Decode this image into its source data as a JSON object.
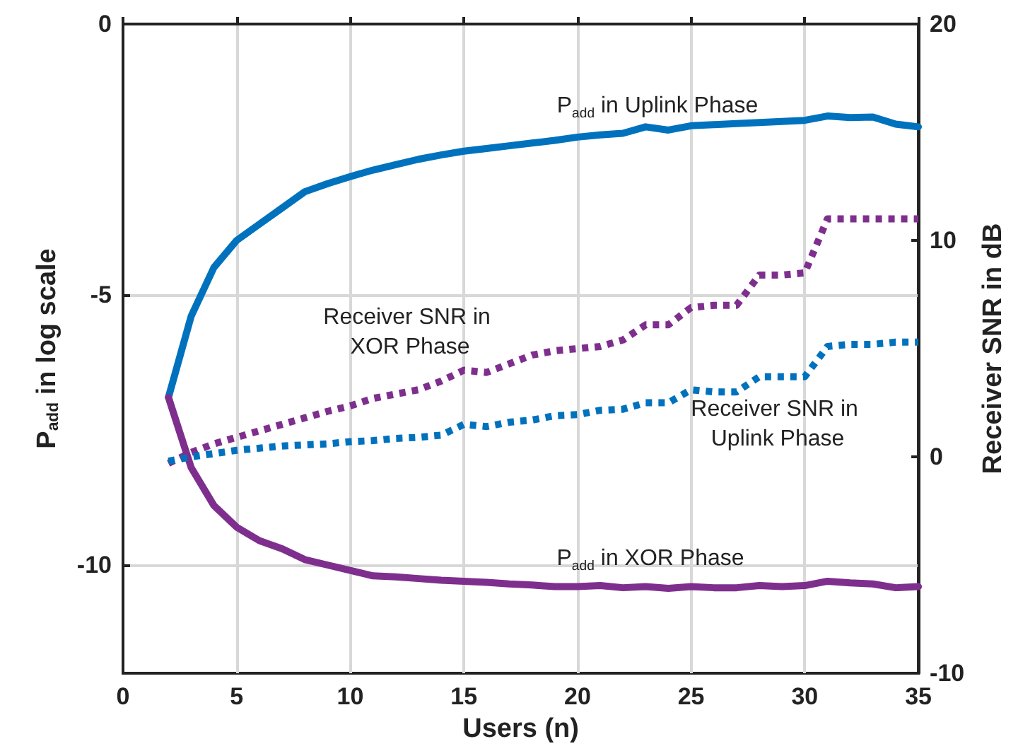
{
  "chart_data": {
    "type": "line",
    "xlabel": "Users (n)",
    "ylabel": "P$_{add}$ in log scale",
    "y2label": "Receiver SNR in dB",
    "xlim": [
      0,
      35
    ],
    "xticks": [
      0,
      5,
      10,
      15,
      20,
      25,
      30,
      35
    ],
    "ylim": [
      -12,
      0
    ],
    "yticks": [
      -10,
      -5,
      0
    ],
    "y2lim": [
      -10,
      20
    ],
    "y2ticks": [
      -10,
      0,
      10,
      20
    ],
    "grid": true,
    "marker": "none",
    "x": [
      2,
      3,
      4,
      5,
      6,
      7,
      8,
      9,
      10,
      11,
      12,
      13,
      14,
      15,
      16,
      17,
      18,
      19,
      20,
      21,
      22,
      23,
      24,
      25,
      26,
      27,
      28,
      29,
      30,
      31,
      32,
      33,
      34,
      35
    ],
    "series": [
      {
        "name": "P$_{add}$ in Uplink Phase",
        "color": "#0072bd",
        "line_style": "solid",
        "values": [
          -6.9,
          -5.4,
          -4.5,
          -4.0,
          -3.7,
          -3.4,
          -3.1,
          -2.95,
          -2.82,
          -2.7,
          -2.6,
          -2.5,
          -2.42,
          -2.35,
          -2.3,
          -2.25,
          -2.2,
          -2.15,
          -2.09,
          -2.05,
          -2.02,
          -1.9,
          -1.96,
          -1.88,
          -1.86,
          -1.84,
          -1.82,
          -1.8,
          -1.78,
          -1.7,
          -1.73,
          -1.72,
          -1.85,
          -1.9
        ]
      },
      {
        "name": "P$_{add}$ in XOR Phase",
        "color": "#7e2f8e",
        "line_style": "solid",
        "values": [
          -6.9,
          -8.2,
          -8.9,
          -9.3,
          -9.55,
          -9.7,
          -9.9,
          -10.0,
          -10.1,
          -10.2,
          -10.22,
          -10.25,
          -10.28,
          -10.3,
          -10.32,
          -10.35,
          -10.37,
          -10.4,
          -10.4,
          -10.38,
          -10.42,
          -10.4,
          -10.43,
          -10.4,
          -10.42,
          -10.42,
          -10.38,
          -10.4,
          -10.38,
          -10.3,
          -10.33,
          -10.35,
          -10.42,
          -10.4
        ]
      },
      {
        "name": "Receiver SNR in XOR Phase",
        "color": "#7e2f8e",
        "line_style": "dotted",
        "axis": "y2",
        "values": [
          -0.3,
          0.2,
          0.6,
          0.9,
          1.2,
          1.5,
          1.8,
          2.1,
          2.35,
          2.7,
          2.9,
          3.1,
          3.5,
          4.0,
          3.9,
          4.3,
          4.7,
          4.9,
          5.0,
          5.1,
          5.4,
          6.1,
          6.1,
          6.9,
          7.0,
          7.0,
          8.4,
          8.4,
          8.5,
          11.0,
          11.0,
          11.0,
          11.0,
          11.0
        ]
      },
      {
        "name": "Receiver SNR in Uplink Phase",
        "color": "#0072bd",
        "line_style": "dotted",
        "axis": "y2",
        "values": [
          -0.2,
          0.0,
          0.15,
          0.3,
          0.4,
          0.5,
          0.55,
          0.6,
          0.7,
          0.75,
          0.85,
          0.9,
          1.0,
          1.5,
          1.4,
          1.6,
          1.7,
          1.9,
          1.95,
          2.15,
          2.2,
          2.5,
          2.5,
          3.1,
          3.0,
          3.0,
          3.7,
          3.7,
          3.7,
          5.1,
          5.2,
          5.2,
          5.3,
          5.3
        ]
      }
    ]
  }
}
